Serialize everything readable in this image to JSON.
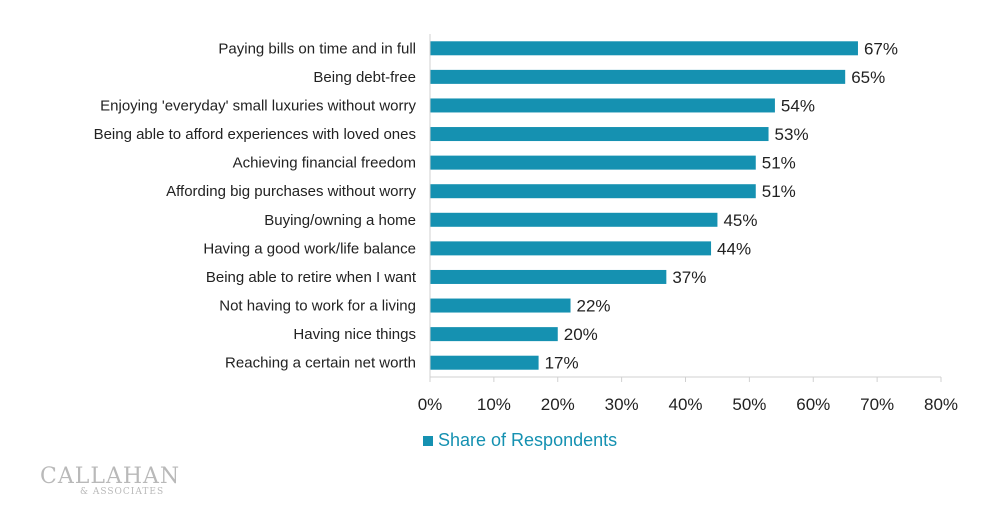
{
  "chart_data": {
    "type": "bar",
    "orientation": "horizontal",
    "title": "",
    "xlabel": "",
    "ylabel": "",
    "categories": [
      "Paying bills on time and in full",
      "Being debt-free",
      "Enjoying 'everyday' small luxuries without worry",
      "Being able to afford experiences with loved ones",
      "Achieving financial freedom",
      "Affording big purchases without worry",
      "Buying/owning a home",
      "Having a good work/life balance",
      "Being able to retire when I want",
      "Not having to work for a living",
      "Having nice things",
      "Reaching a certain net worth"
    ],
    "series": [
      {
        "name": "Share of Respondents",
        "values": [
          67,
          65,
          54,
          53,
          51,
          51,
          45,
          44,
          37,
          22,
          20,
          17
        ]
      }
    ],
    "value_labels": [
      "67%",
      "65%",
      "54%",
      "53%",
      "51%",
      "51%",
      "45%",
      "44%",
      "37%",
      "22%",
      "20%",
      "17%"
    ],
    "xlim": [
      0,
      80
    ],
    "xticks": [
      0,
      10,
      20,
      30,
      40,
      50,
      60,
      70,
      80
    ],
    "xtick_labels": [
      "0%",
      "10%",
      "20%",
      "30%",
      "40%",
      "50%",
      "60%",
      "70%",
      "80%"
    ],
    "grid": false,
    "legend_position": "bottom-center",
    "bar_color": "#1591b1"
  },
  "legend": {
    "label": "Share of Respondents"
  },
  "logo": {
    "main": "CALLAHAN",
    "sub": "& ASSOCIATES"
  }
}
